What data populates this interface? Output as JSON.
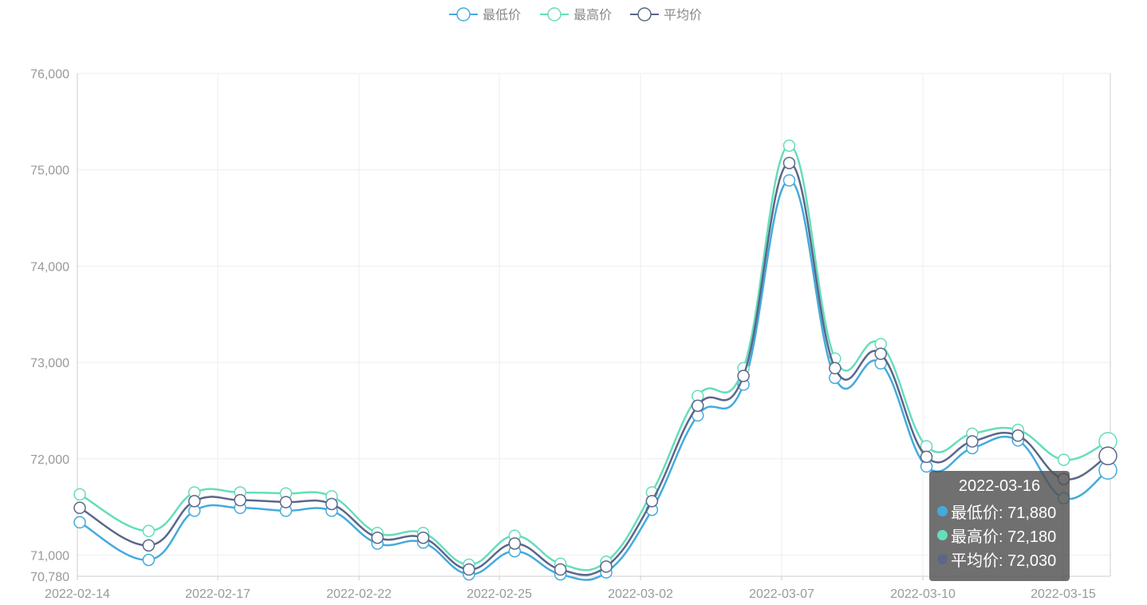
{
  "chart_data": {
    "type": "line",
    "title": "",
    "xlabel": "",
    "ylabel": "",
    "ylim": [
      70780,
      76000
    ],
    "y_ticks": [
      70780,
      71000,
      72000,
      73000,
      74000,
      75000,
      76000
    ],
    "y_tick_labels": [
      "70,780",
      "71,000",
      "72,000",
      "73,000",
      "74,000",
      "75,000",
      "76,000"
    ],
    "x": [
      "2022-02-14",
      "2022-02-15",
      "2022-02-16",
      "2022-02-17",
      "2022-02-18",
      "2022-02-21",
      "2022-02-22",
      "2022-02-23",
      "2022-02-24",
      "2022-02-25",
      "2022-02-28",
      "2022-03-01",
      "2022-03-02",
      "2022-03-03",
      "2022-03-04",
      "2022-03-07",
      "2022-03-08",
      "2022-03-09",
      "2022-03-10",
      "2022-03-11",
      "2022-03-14",
      "2022-03-15",
      "2022-03-16"
    ],
    "x_tick_labels": [
      "2022-02-14",
      "2022-02-17",
      "2022-02-22",
      "2022-02-25",
      "2022-03-02",
      "2022-03-07",
      "2022-03-10",
      "2022-03-15"
    ],
    "x_tick_indices": [
      0,
      3,
      6,
      9,
      12,
      15,
      18,
      21
    ],
    "grid": true,
    "legend_position": "top-center",
    "series": [
      {
        "name": "最低价",
        "color": "#44aadd",
        "values": [
          71340,
          70950,
          71460,
          71490,
          71460,
          71460,
          71120,
          71130,
          70800,
          71040,
          70800,
          70820,
          71470,
          72450,
          72770,
          74890,
          72840,
          72990,
          71920,
          72110,
          72190,
          71590,
          71880
        ]
      },
      {
        "name": "最高价",
        "color": "#66ddbb",
        "values": [
          71630,
          71250,
          71650,
          71650,
          71640,
          71610,
          71230,
          71230,
          70900,
          71200,
          70910,
          70930,
          71650,
          72650,
          72940,
          75250,
          73040,
          73190,
          72130,
          72260,
          72300,
          71990,
          72180
        ]
      },
      {
        "name": "平均价",
        "color": "#5c6688",
        "values": [
          71490,
          71100,
          71560,
          71570,
          71550,
          71530,
          71180,
          71180,
          70850,
          71120,
          70850,
          70880,
          71560,
          72550,
          72860,
          75070,
          72940,
          73090,
          72020,
          72180,
          72240,
          71790,
          72030
        ]
      }
    ]
  },
  "tooltip": {
    "title": "2022-03-16",
    "rows": [
      {
        "label": "最低价: 71,880",
        "color": "#44aadd"
      },
      {
        "label": "最高价: 72,180",
        "color": "#66ddbb"
      },
      {
        "label": "平均价: 72,030",
        "color": "#5c6688"
      }
    ]
  }
}
